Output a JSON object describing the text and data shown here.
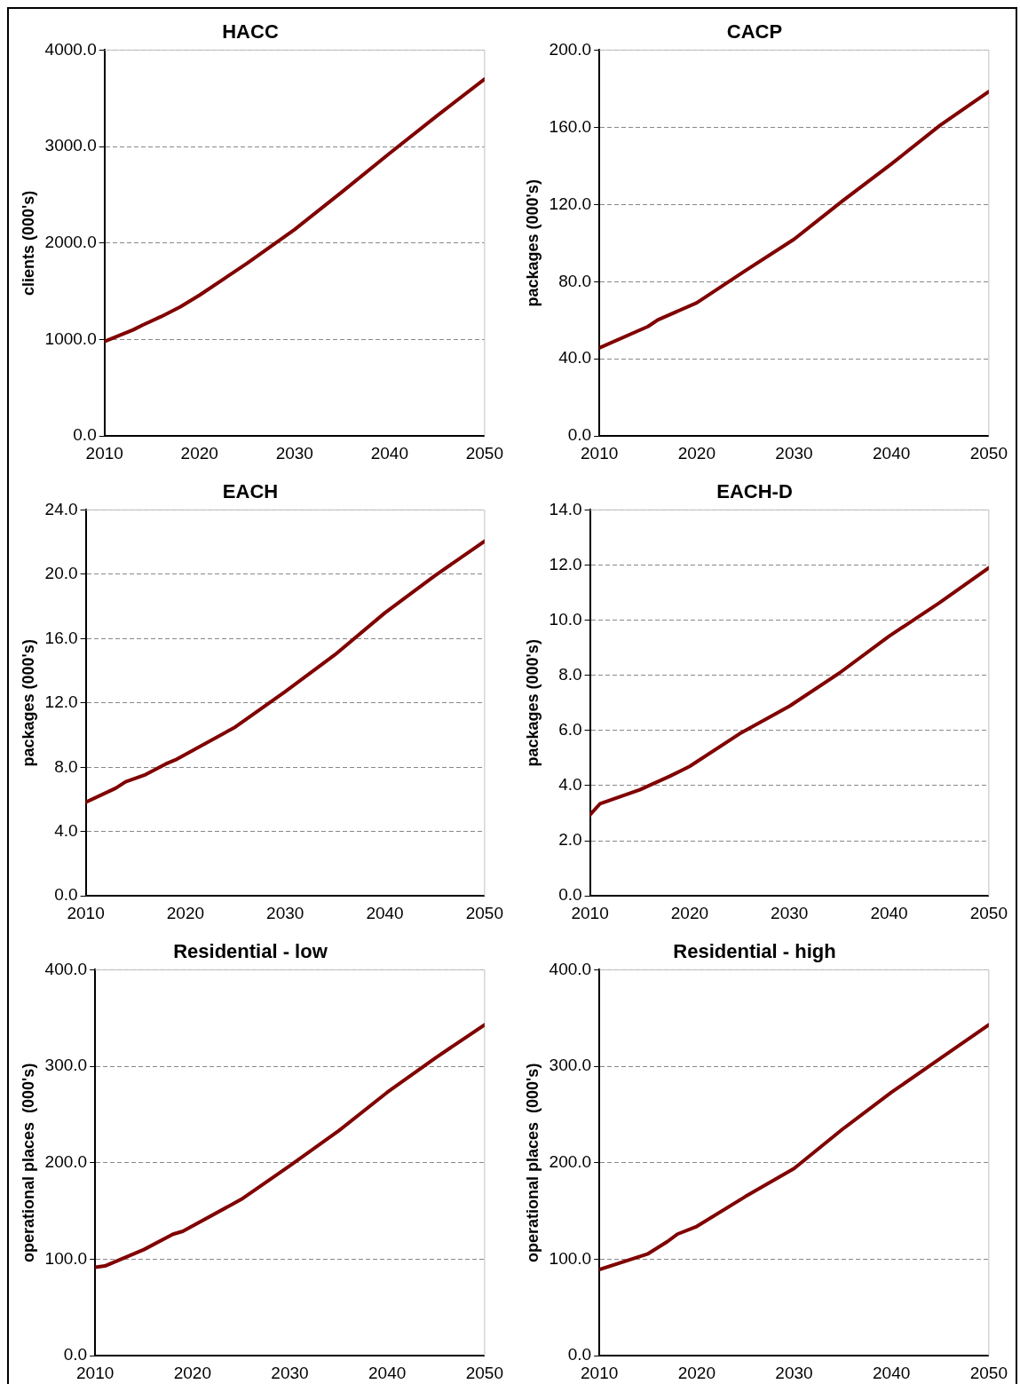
{
  "chart_data": [
    {
      "type": "line",
      "title": "HACC",
      "ylabel": "clients (000's)",
      "xlim": [
        2010,
        2050
      ],
      "xticks": [
        2010,
        2020,
        2030,
        2040,
        2050
      ],
      "ylim": [
        0,
        4000
      ],
      "yticks": [
        {
          "value": 0,
          "label": "0.0"
        },
        {
          "value": 1000,
          "label": "1000.0"
        },
        {
          "value": 2000,
          "label": "2000.0"
        },
        {
          "value": 3000,
          "label": "3000.0"
        },
        {
          "value": 4000,
          "label": "4000.0"
        }
      ],
      "grid": "y",
      "legend": false,
      "marker": "none",
      "line_style": "solid",
      "series": [
        {
          "color": "#800000",
          "x": [
            2010,
            2013,
            2014,
            2016,
            2018,
            2020,
            2025,
            2030,
            2035,
            2040,
            2045,
            2050
          ],
          "values": [
            980,
            1100,
            1150,
            1240,
            1340,
            1460,
            1790,
            2140,
            2530,
            2930,
            3320,
            3700
          ]
        }
      ]
    },
    {
      "type": "line",
      "title": "CACP",
      "ylabel": "packages (000's)",
      "xlim": [
        2010,
        2050
      ],
      "xticks": [
        2010,
        2020,
        2030,
        2040,
        2050
      ],
      "ylim": [
        0,
        200
      ],
      "yticks": [
        {
          "value": 0,
          "label": "0.0"
        },
        {
          "value": 40,
          "label": "40.0"
        },
        {
          "value": 80,
          "label": "80.0"
        },
        {
          "value": 120,
          "label": "120.0"
        },
        {
          "value": 160,
          "label": "160.0"
        },
        {
          "value": 200,
          "label": "200.0"
        }
      ],
      "grid": "y",
      "legend": false,
      "marker": "none",
      "line_style": "solid",
      "series": [
        {
          "color": "#800000",
          "x": [
            2010,
            2015,
            2016,
            2020,
            2025,
            2030,
            2035,
            2040,
            2045,
            2050
          ],
          "values": [
            45.7,
            56.8,
            60.2,
            69,
            85.7,
            102,
            121.9,
            141,
            161,
            178.5
          ]
        }
      ]
    },
    {
      "type": "line",
      "title": "EACH",
      "ylabel": "packages (000's)",
      "xlim": [
        2010,
        2050
      ],
      "xticks": [
        2010,
        2020,
        2030,
        2040,
        2050
      ],
      "ylim": [
        0,
        24
      ],
      "yticks": [
        {
          "value": 0,
          "label": "0.0"
        },
        {
          "value": 4,
          "label": "4.0"
        },
        {
          "value": 8,
          "label": "8.0"
        },
        {
          "value": 12,
          "label": "12.0"
        },
        {
          "value": 16,
          "label": "16.0"
        },
        {
          "value": 20,
          "label": "20.0"
        },
        {
          "value": 24,
          "label": "24.0"
        }
      ],
      "grid": "y",
      "legend": false,
      "marker": "none",
      "line_style": "solid",
      "series": [
        {
          "color": "#800000",
          "x": [
            2010,
            2013,
            2014,
            2016,
            2018,
            2019,
            2025,
            2030,
            2035,
            2040,
            2045,
            2050
          ],
          "values": [
            5.83,
            6.7,
            7.1,
            7.54,
            8.2,
            8.46,
            10.5,
            12.7,
            15.0,
            17.6,
            19.9,
            22.06
          ]
        }
      ]
    },
    {
      "type": "line",
      "title": "EACH-D",
      "ylabel": "packages (000's)",
      "xlim": [
        2010,
        2050
      ],
      "xticks": [
        2010,
        2020,
        2030,
        2040,
        2050
      ],
      "ylim": [
        0,
        14
      ],
      "yticks": [
        {
          "value": 0,
          "label": "0.0"
        },
        {
          "value": 2,
          "label": "2.0"
        },
        {
          "value": 4,
          "label": "4.0"
        },
        {
          "value": 6,
          "label": "6.0"
        },
        {
          "value": 8,
          "label": "8.0"
        },
        {
          "value": 10,
          "label": "10.0"
        },
        {
          "value": 12,
          "label": "12.0"
        },
        {
          "value": 14,
          "label": "14.0"
        }
      ],
      "grid": "y",
      "legend": false,
      "marker": "none",
      "line_style": "solid",
      "series": [
        {
          "color": "#800000",
          "x": [
            2010,
            2011,
            2015,
            2018,
            2020,
            2025,
            2030,
            2035,
            2040,
            2045,
            2050
          ],
          "values": [
            2.94,
            3.34,
            3.85,
            4.34,
            4.7,
            5.88,
            6.88,
            8.08,
            9.42,
            10.62,
            11.9
          ]
        }
      ]
    },
    {
      "type": "line",
      "title": "Residential - low",
      "ylabel": "operational places  (000's)",
      "xlim": [
        2010,
        2050
      ],
      "xticks": [
        2010,
        2020,
        2030,
        2040,
        2050
      ],
      "ylim": [
        0,
        400
      ],
      "yticks": [
        {
          "value": 0,
          "label": "0.0"
        },
        {
          "value": 100,
          "label": "100.0"
        },
        {
          "value": 200,
          "label": "200.0"
        },
        {
          "value": 300,
          "label": "300.0"
        },
        {
          "value": 400,
          "label": "400.0"
        }
      ],
      "grid": "y",
      "legend": false,
      "marker": "none",
      "line_style": "solid",
      "series": [
        {
          "color": "#800000",
          "x": [
            2010,
            2011,
            2015,
            2018,
            2019,
            2025,
            2030,
            2035,
            2040,
            2045,
            2050
          ],
          "values": [
            91.8,
            93,
            110,
            126,
            129,
            162,
            197,
            233,
            273,
            309,
            343
          ]
        }
      ]
    },
    {
      "type": "line",
      "title": "Residential - high",
      "ylabel": "operational places  (000's)",
      "xlim": [
        2010,
        2050
      ],
      "xticks": [
        2010,
        2020,
        2030,
        2040,
        2050
      ],
      "ylim": [
        0,
        400
      ],
      "yticks": [
        {
          "value": 0,
          "label": "0.0"
        },
        {
          "value": 100,
          "label": "100.0"
        },
        {
          "value": 200,
          "label": "200.0"
        },
        {
          "value": 300,
          "label": "300.0"
        },
        {
          "value": 400,
          "label": "400.0"
        }
      ],
      "grid": "y",
      "legend": false,
      "marker": "none",
      "line_style": "solid",
      "series": [
        {
          "color": "#800000",
          "x": [
            2010,
            2015,
            2017,
            2018,
            2020,
            2025,
            2030,
            2035,
            2040,
            2045,
            2050
          ],
          "values": [
            89.3,
            105.7,
            118.4,
            126,
            134,
            165,
            194,
            235,
            273,
            308,
            343
          ]
        }
      ]
    }
  ]
}
